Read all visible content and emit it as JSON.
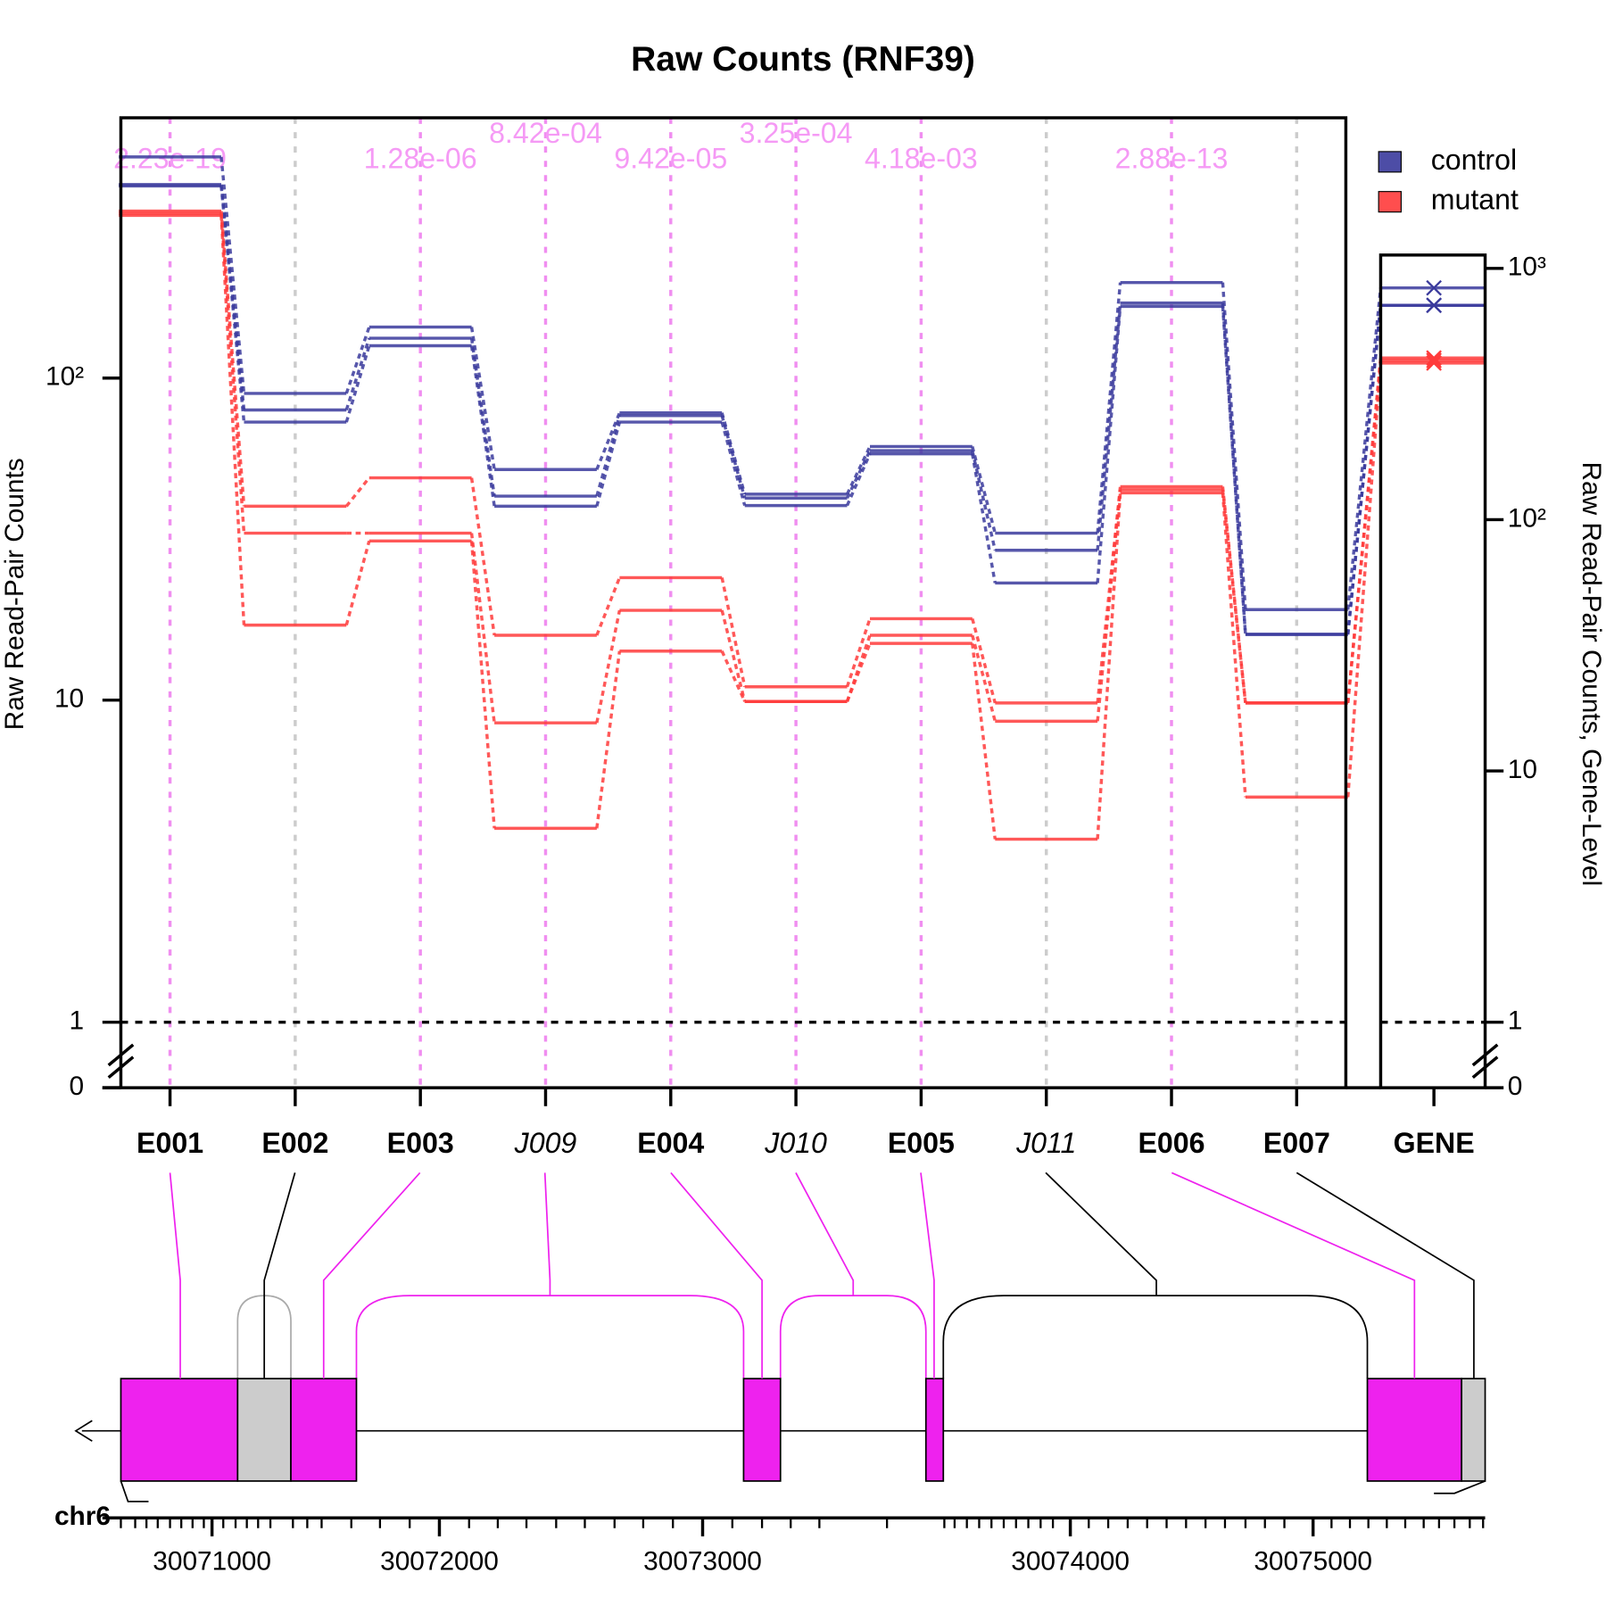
{
  "chart_data": {
    "type": "line",
    "title": "Raw Counts (RNF39)",
    "y_label": "Raw Read-Pair Counts",
    "y2_label": "Raw Read-Pair Counts, Gene-Level",
    "categories": [
      "E001",
      "E002",
      "E003",
      "J009",
      "E004",
      "J010",
      "E005",
      "J011",
      "E006",
      "E007"
    ],
    "italic": [
      false,
      false,
      false,
      true,
      false,
      true,
      false,
      true,
      false,
      false
    ],
    "gene_category": "GENE",
    "pvalues": [
      "2.23e-19",
      null,
      "1.28e-06",
      "8.42e-04",
      "9.42e-05",
      "3.25e-04",
      "4.18e-03",
      null,
      "2.88e-13",
      null
    ],
    "series": [
      {
        "name": "control",
        "color": "#3a3a9c",
        "samples": [
          {
            "values": [
              486,
              89.6,
              144,
              52,
              78,
              43.6,
              61.3,
              33,
              198,
              19.1
            ],
            "gene": 836
          },
          {
            "values": [
              399,
              79.6,
              133,
              43,
              76.5,
              42.4,
              59.5,
              29.2,
              171,
              16
            ],
            "gene": 713
          },
          {
            "values": [
              395,
              73,
              126,
              40,
              73,
              40.2,
              58.2,
              23.1,
              167,
              16
            ],
            "gene": 713
          }
        ]
      },
      {
        "name": "mutant",
        "color": "#ff3b3b",
        "samples": [
          {
            "values": [
              330,
              40,
              49,
              15.9,
              24,
              11,
              17.9,
              9.8,
              46,
              9.8
            ],
            "gene": 440
          },
          {
            "values": [
              325,
              33,
              33,
              8.5,
              19,
              9.9,
              15.9,
              8.6,
              45,
              9.8
            ],
            "gene": 430
          },
          {
            "values": [
              320,
              17.1,
              31.2,
              4,
              14.2,
              9.9,
              15,
              3.7,
              44,
              5
            ],
            "gene": 420
          }
        ]
      }
    ],
    "log_scale": true,
    "ylim": [
      0,
      643
    ],
    "yticks": [
      0,
      1,
      10,
      {
        "value": 100,
        "label": "10²"
      }
    ],
    "y2lim": [
      0,
      1130
    ],
    "y2ticks": [
      0,
      1,
      10,
      {
        "value": 100,
        "label": "10²"
      },
      {
        "value": 1000,
        "label": "10³"
      }
    ],
    "reference_line": 1,
    "legend": "top-right"
  },
  "gene_model": {
    "chromosome": "chr6",
    "axis_labels": [
      "30071000",
      "30072000",
      "30073000",
      "30074000",
      "30075000"
    ]
  }
}
